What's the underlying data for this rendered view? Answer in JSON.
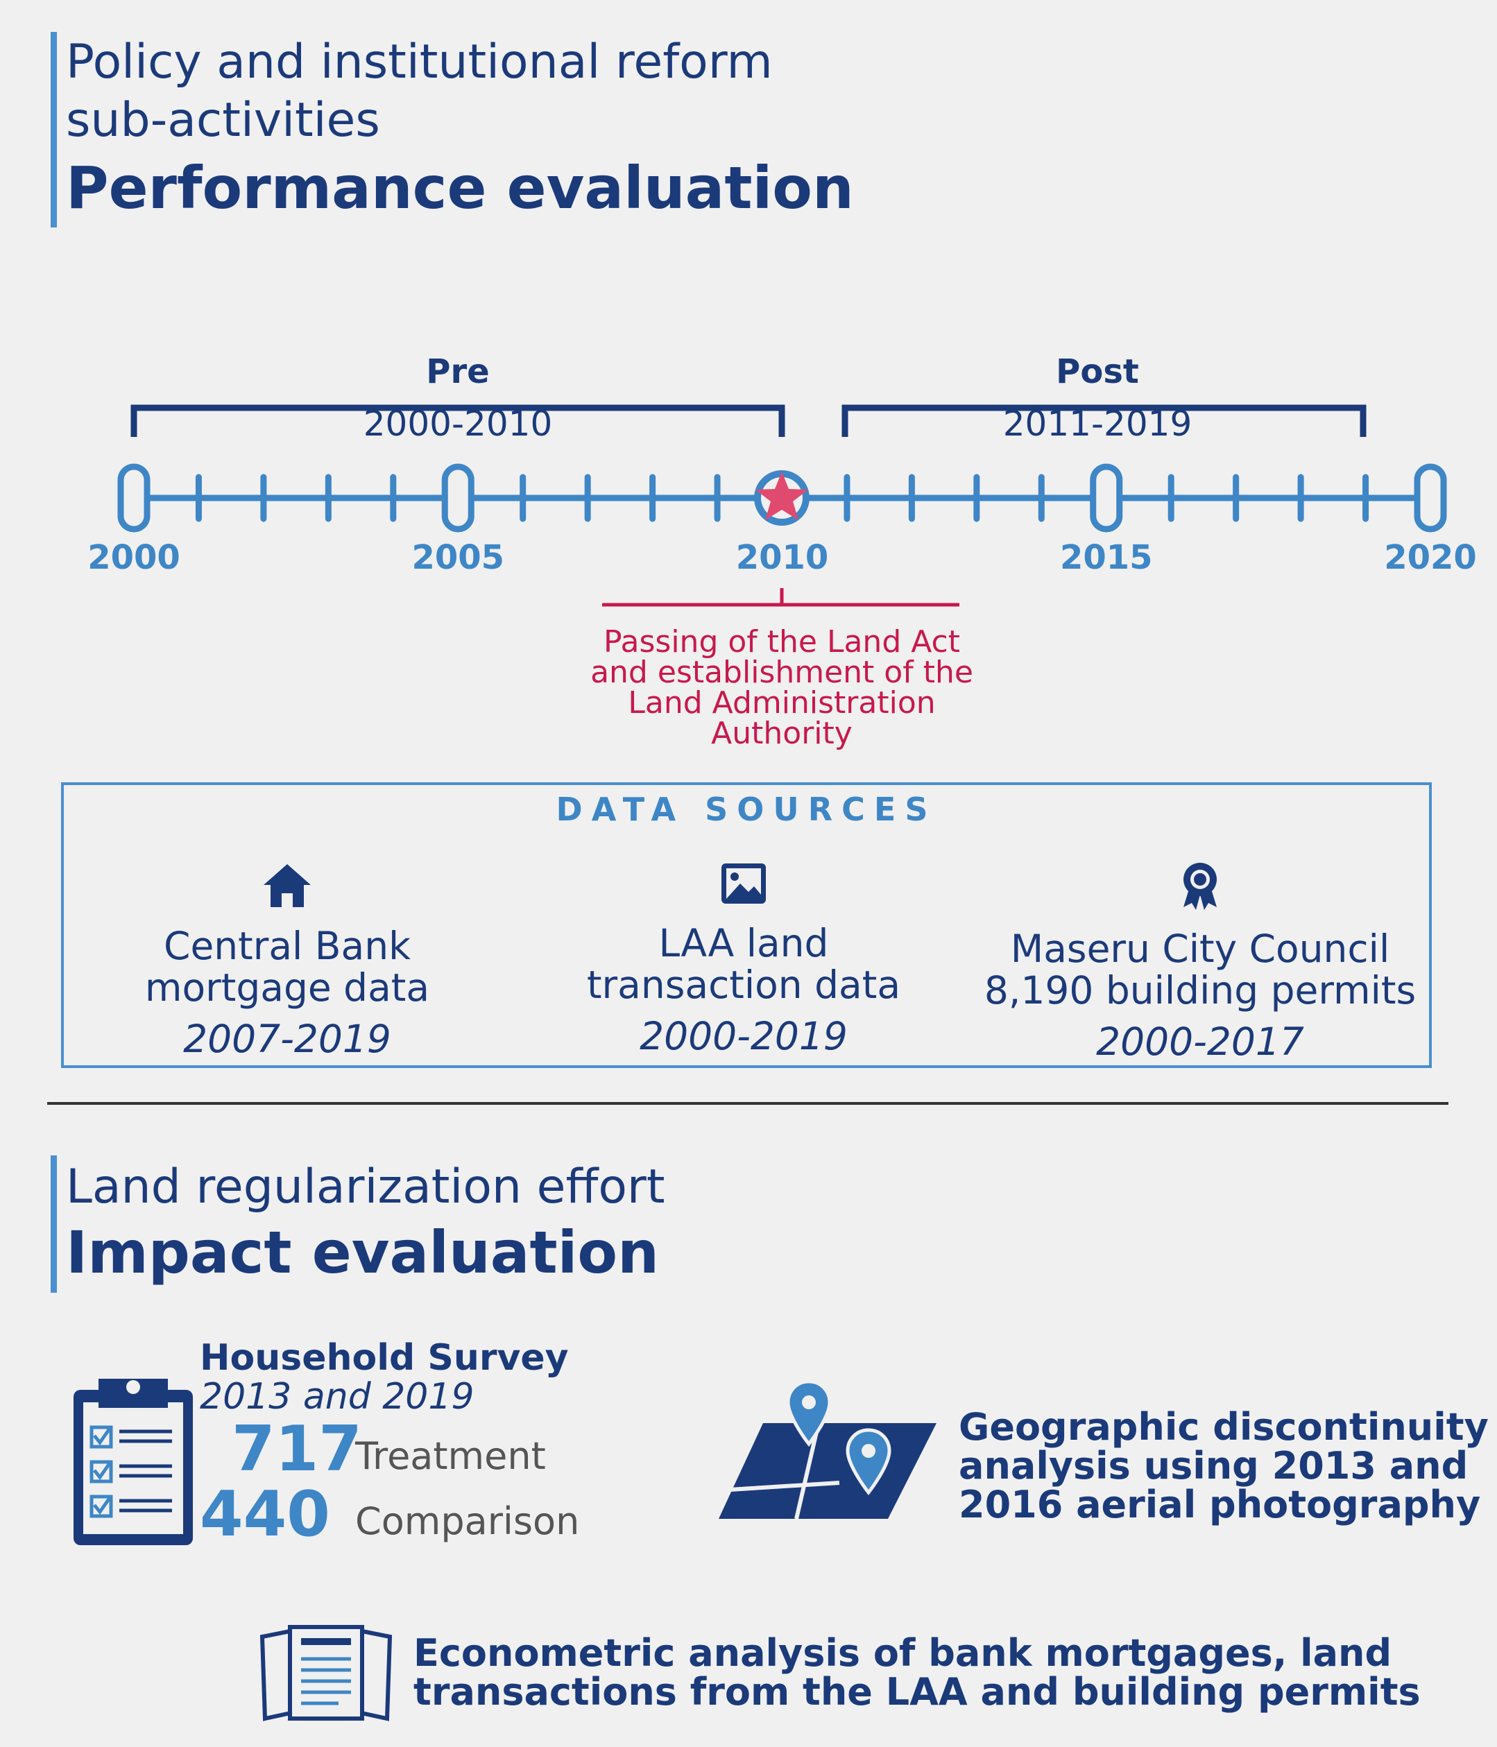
{
  "section1": {
    "title_line1": "Policy and institutional reform",
    "title_line2": "sub-activities",
    "heading": "Performance evaluation"
  },
  "timeline": {
    "pre_label": "Pre",
    "pre_range": "2000-2010",
    "post_label": "Post",
    "post_range": "2011-2019",
    "years": [
      "2000",
      "2005",
      "2010",
      "2015",
      "2020"
    ],
    "start_year": 2000,
    "end_year": 2020,
    "event_year": 2010,
    "event_lines": [
      "Passing of the Land Act",
      "and establishment of the",
      "Land Administration",
      "Authority"
    ]
  },
  "data_sources": {
    "title": "DATA SOURCES",
    "items": [
      {
        "icon": "house-icon",
        "line1": "Central Bank",
        "line2": "mortgage data",
        "years": "2007-2019"
      },
      {
        "icon": "image-icon",
        "line1": "LAA land",
        "line2": "transaction data",
        "years": "2000-2019"
      },
      {
        "icon": "award-icon",
        "line1": "Maseru City Council",
        "line2": "8,190 building permits",
        "years": "2000-2017"
      }
    ]
  },
  "section2": {
    "title": "Land regularization effort",
    "heading": "Impact evaluation"
  },
  "household": {
    "title": "Household Survey",
    "years": "2013 and 2019",
    "treatment_count": "717",
    "treatment_label": "Treatment",
    "comparison_count": "440",
    "comparison_label": "Comparison"
  },
  "geo": {
    "line1": "Geographic discontinuity",
    "line2": "analysis using 2013 and",
    "line3": "2016 aerial photography"
  },
  "econ": {
    "line1": "Econometric analysis of bank mortgages, land",
    "line2": "transactions from the LAA and building permits"
  },
  "colors": {
    "navy": "#1b3a7a",
    "blue": "#3e86c6",
    "red": "#c8194c",
    "star": "#e04a6e",
    "background": "#f0f0f0"
  }
}
